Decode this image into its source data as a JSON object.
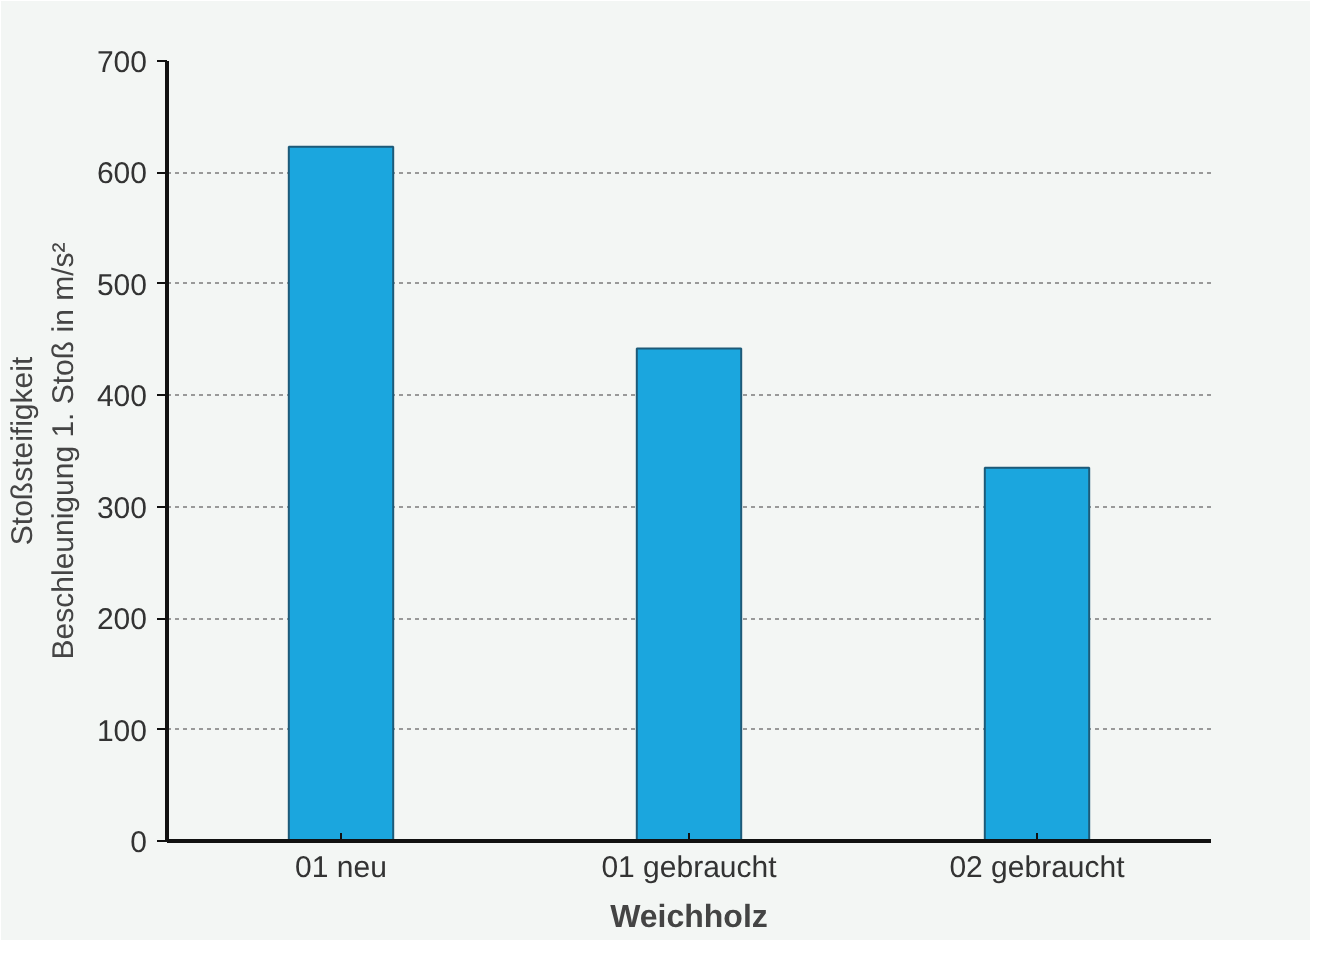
{
  "chart_data": {
    "type": "bar",
    "categories": [
      "01 neu",
      "01 gebraucht",
      "02 gebraucht"
    ],
    "values": [
      623,
      442,
      335
    ],
    "color": "#1ba6de",
    "ylim": [
      0,
      700
    ],
    "yticks": [
      0,
      100,
      200,
      300,
      400,
      500,
      600,
      700
    ],
    "grid": "y",
    "xlabel": "Weichholz",
    "ylabel": "Stoßsteifigkeit\nBeschleunigung 1. Stoß in m/s²"
  }
}
